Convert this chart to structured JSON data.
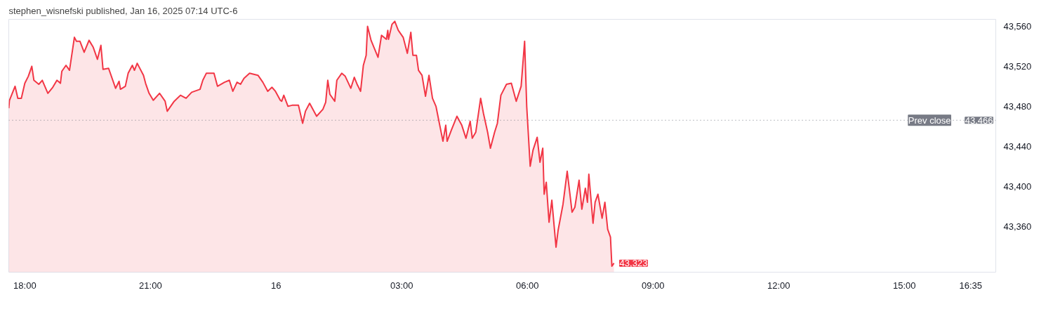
{
  "chart_data": {
    "type": "area",
    "title": "stephen_wisnefski published, Jan 16, 2025 07:14 UTC-6",
    "x": [
      "2025-01-15T17:37",
      "2025-01-15T17:38",
      "2025-01-15T17:46",
      "2025-01-15T17:50",
      "2025-01-15T17:55",
      "2025-01-15T18:00",
      "2025-01-15T18:05",
      "2025-01-15T18:10",
      "2025-01-15T18:13",
      "2025-01-15T18:20",
      "2025-01-15T18:25",
      "2025-01-15T18:33",
      "2025-01-15T18:40",
      "2025-01-15T18:46",
      "2025-01-15T18:51",
      "2025-01-15T18:53",
      "2025-01-15T18:59",
      "2025-01-15T19:04",
      "2025-01-15T19:11",
      "2025-01-15T19:14",
      "2025-01-15T19:19",
      "2025-01-15T19:25",
      "2025-01-15T19:32",
      "2025-01-15T19:38",
      "2025-01-15T19:44",
      "2025-01-15T19:49",
      "2025-01-15T19:52",
      "2025-01-15T20:00",
      "2025-01-15T20:10",
      "2025-01-15T20:15",
      "2025-01-15T20:17",
      "2025-01-15T20:24",
      "2025-01-15T20:28",
      "2025-01-15T20:34",
      "2025-01-15T20:37",
      "2025-01-15T20:41",
      "2025-01-15T20:50",
      "2025-01-15T20:53",
      "2025-01-15T20:58",
      "2025-01-15T21:04",
      "2025-01-15T21:13",
      "2025-01-15T21:21",
      "2025-01-15T21:24",
      "2025-01-15T21:34",
      "2025-01-15T21:43",
      "2025-01-15T21:51",
      "2025-01-15T21:59",
      "2025-01-15T22:11",
      "2025-01-15T22:15",
      "2025-01-15T22:20",
      "2025-01-15T22:31",
      "2025-01-15T22:36",
      "2025-01-15T22:46",
      "2025-01-15T22:53",
      "2025-01-15T22:58",
      "2025-01-15T23:04",
      "2025-01-15T23:09",
      "2025-01-15T23:14",
      "2025-01-15T23:22",
      "2025-01-15T23:34",
      "2025-01-15T23:41",
      "2025-01-15T23:48",
      "2025-01-15T23:54",
      "2025-01-15T23:59",
      "2025-01-16T00:06",
      "2025-01-16T00:08",
      "2025-01-16T00:11",
      "2025-01-16T00:17",
      "2025-01-16T00:23",
      "2025-01-16T00:32",
      "2025-01-16T00:38",
      "2025-01-16T00:42",
      "2025-01-16T00:48",
      "2025-01-16T00:58",
      "2025-01-16T01:07",
      "2025-01-16T01:11",
      "2025-01-16T01:14",
      "2025-01-16T01:17",
      "2025-01-16T01:24",
      "2025-01-16T01:27",
      "2025-01-16T01:34",
      "2025-01-16T01:39",
      "2025-01-16T01:47",
      "2025-01-16T01:52",
      "2025-01-16T01:56",
      "2025-01-16T02:01",
      "2025-01-16T02:05",
      "2025-01-16T02:09",
      "2025-01-16T02:11",
      "2025-01-16T02:16",
      "2025-01-16T02:26",
      "2025-01-16T02:31",
      "2025-01-16T02:38",
      "2025-01-16T02:40",
      "2025-01-16T02:41",
      "2025-01-16T02:46",
      "2025-01-16T02:50",
      "2025-01-16T02:55",
      "2025-01-16T03:02",
      "2025-01-16T03:08",
      "2025-01-16T03:13",
      "2025-01-16T03:16",
      "2025-01-16T03:21",
      "2025-01-16T03:24",
      "2025-01-16T03:29",
      "2025-01-16T03:34",
      "2025-01-16T03:39",
      "2025-01-16T03:44",
      "2025-01-16T03:49",
      "2025-01-16T03:53",
      "2025-01-16T03:59",
      "2025-01-16T04:03",
      "2025-01-16T04:05",
      "2025-01-16T04:11",
      "2025-01-16T04:19",
      "2025-01-16T04:26",
      "2025-01-16T04:32",
      "2025-01-16T04:38",
      "2025-01-16T04:41",
      "2025-01-16T04:46",
      "2025-01-16T04:53",
      "2025-01-16T04:57",
      "2025-01-16T05:03",
      "2025-01-16T05:07",
      "2025-01-16T05:13",
      "2025-01-16T05:17",
      "2025-01-16T05:22",
      "2025-01-16T05:30",
      "2025-01-16T05:37",
      "2025-01-16T05:44",
      "2025-01-16T05:51",
      "2025-01-16T05:56",
      "2025-01-16T05:59",
      "2025-01-16T06:04",
      "2025-01-16T06:08",
      "2025-01-16T06:14",
      "2025-01-16T06:18",
      "2025-01-16T06:22",
      "2025-01-16T06:24",
      "2025-01-16T06:27",
      "2025-01-16T06:31",
      "2025-01-16T06:35",
      "2025-01-16T06:41",
      "2025-01-16T06:44",
      "2025-01-16T06:51",
      "2025-01-16T06:57",
      "2025-01-16T07:04",
      "2025-01-16T07:08",
      "2025-01-16T07:14",
      "2025-01-16T07:18",
      "2025-01-16T07:23",
      "2025-01-16T07:26",
      "2025-01-16T07:28",
      "2025-01-16T07:34",
      "2025-01-16T07:37",
      "2025-01-16T07:41",
      "2025-01-16T07:47",
      "2025-01-16T07:51",
      "2025-01-16T07:55",
      "2025-01-16T07:59",
      "2025-01-16T08:01",
      "2025-01-16T08:04"
    ],
    "series": [
      {
        "color": "#f23645",
        "values": [
          43478,
          43486,
          43500,
          43488,
          43488,
          43503,
          43510,
          43520,
          43506,
          43502,
          43506,
          43493,
          43499,
          43506,
          43503,
          43515,
          43521,
          43516,
          43549,
          43545,
          43545,
          43534,
          43546,
          43539,
          43527,
          43541,
          43517,
          43518,
          43498,
          43505,
          43497,
          43500,
          43513,
          43521,
          43516,
          43523,
          43511,
          43503,
          43493,
          43486,
          43493,
          43485,
          43475,
          43485,
          43491,
          43488,
          43494,
          43497,
          43506,
          43513,
          43513,
          43500,
          43504,
          43506,
          43495,
          43504,
          43502,
          43508,
          43513,
          43511,
          43504,
          43495,
          43499,
          43495,
          43486,
          43485,
          43491,
          43480,
          43481,
          43481,
          43463,
          43475,
          43483,
          43470,
          43477,
          43484,
          43506,
          43492,
          43485,
          43506,
          43513,
          43510,
          43498,
          43509,
          43502,
          43495,
          43521,
          43531,
          43560,
          43546,
          43529,
          43551,
          43547,
          43556,
          43547,
          43562,
          43565,
          43556,
          43549,
          43533,
          43554,
          43531,
          43531,
          43516,
          43511,
          43490,
          43511,
          43488,
          43480,
          43466,
          43445,
          43461,
          43445,
          43456,
          43470,
          43461,
          43448,
          43465,
          43448,
          43454,
          43488,
          43473,
          43454,
          43438,
          43454,
          43463,
          43491,
          43502,
          43503,
          43485,
          43500,
          43545,
          43480,
          43420,
          43436,
          43449,
          43424,
          43438,
          43392,
          43404,
          43364,
          43386,
          43339,
          43356,
          43382,
          43415,
          43374,
          43379,
          43406,
          43377,
          43398,
          43384,
          43412,
          43363,
          43384,
          43392,
          43368,
          43384,
          43357,
          43349,
          43320,
          43323
        ]
      }
    ],
    "xlim": [
      "2025-01-15T17:37",
      "2025-01-16T17:11"
    ],
    "xticks": [
      {
        "value": "2025-01-15T18:00",
        "label": "18:00"
      },
      {
        "value": "2025-01-15T21:00",
        "label": "21:00"
      },
      {
        "value": "2025-01-16T00:00",
        "label": "16"
      },
      {
        "value": "2025-01-16T03:00",
        "label": "03:00"
      },
      {
        "value": "2025-01-16T06:00",
        "label": "06:00"
      },
      {
        "value": "2025-01-16T09:00",
        "label": "09:00"
      },
      {
        "value": "2025-01-16T12:00",
        "label": "12:00"
      },
      {
        "value": "2025-01-16T15:00",
        "label": "15:00"
      },
      {
        "value": "2025-01-16T16:35",
        "label": "16:35"
      }
    ],
    "ylim": [
      43314,
      43567
    ],
    "yticks": [
      {
        "value": 43360,
        "label": "43,360"
      },
      {
        "value": 43400,
        "label": "43,400"
      },
      {
        "value": 43440,
        "label": "43,440"
      },
      {
        "value": 43480,
        "label": "43,480"
      },
      {
        "value": 43520,
        "label": "43,520"
      },
      {
        "value": 43560,
        "label": "43,560"
      }
    ],
    "ref_lines": [
      {
        "axis": "y",
        "value": 43466,
        "label": "Prev close",
        "color": "#787b86",
        "line_style": "dotted"
      }
    ],
    "annotations": [
      {
        "text": "43,466",
        "x": "2025-01-16T17:11",
        "y": 43466
      },
      {
        "text": "43,323",
        "x": "2025-01-16T08:04",
        "y": 43323
      }
    ],
    "grid": false
  }
}
